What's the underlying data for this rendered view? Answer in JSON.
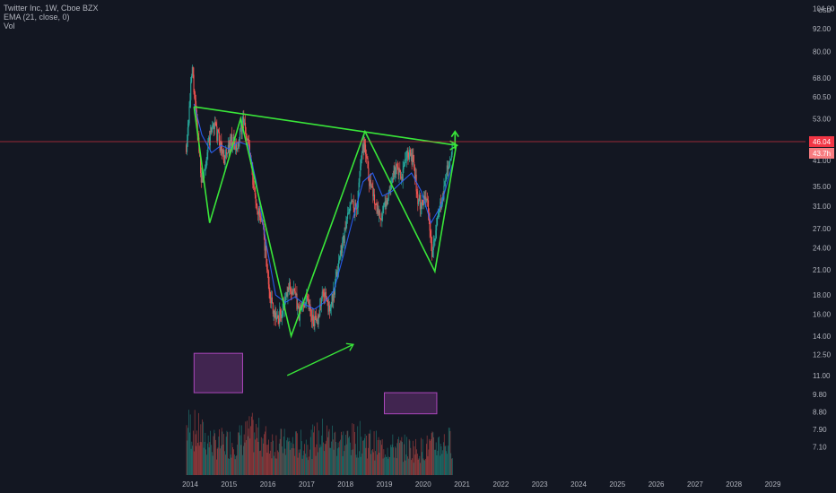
{
  "legend": {
    "symbol_line": "Twitter Inc, 1W, Cboe BZX",
    "ema_line": "EMA (21, close, 0)",
    "vol_line": "Vol"
  },
  "chart_data": {
    "type": "candlestick",
    "symbol": "Twitter Inc",
    "interval": "1W",
    "exchange": "Cboe BZX",
    "currency": "USD",
    "scale": "log",
    "x_tick_labels": [
      "2014",
      "2015",
      "2016",
      "2017",
      "2018",
      "2019",
      "2020",
      "2021",
      "2022",
      "2023",
      "2024",
      "2025",
      "2026",
      "2027",
      "2028",
      "2029"
    ],
    "y_tick_labels": [
      "104.00",
      "92.00",
      "80.00",
      "68.00",
      "60.50",
      "53.00",
      "41.00",
      "35.00",
      "31.00",
      "27.00",
      "24.00",
      "21.00",
      "18.00",
      "16.00",
      "14.00",
      "12.50",
      "11.00",
      "9.80",
      "8.80",
      "7.90",
      "7.10"
    ],
    "last_price_label": "46.04",
    "second_price_label": "43.7h",
    "price_path": [
      [
        2013.9,
        45
      ],
      [
        2014.0,
        60
      ],
      [
        2014.05,
        72
      ],
      [
        2014.15,
        54
      ],
      [
        2014.3,
        36
      ],
      [
        2014.45,
        44
      ],
      [
        2014.6,
        52
      ],
      [
        2014.75,
        46
      ],
      [
        2014.9,
        41
      ],
      [
        2015.05,
        47
      ],
      [
        2015.2,
        43
      ],
      [
        2015.35,
        52
      ],
      [
        2015.5,
        46
      ],
      [
        2015.62,
        35
      ],
      [
        2015.75,
        30
      ],
      [
        2015.9,
        26
      ],
      [
        2016.0,
        20
      ],
      [
        2016.1,
        17
      ],
      [
        2016.25,
        15.5
      ],
      [
        2016.4,
        16.5
      ],
      [
        2016.55,
        19
      ],
      [
        2016.7,
        18
      ],
      [
        2016.8,
        16
      ],
      [
        2016.9,
        17
      ],
      [
        2017.0,
        18
      ],
      [
        2017.12,
        16
      ],
      [
        2017.25,
        15
      ],
      [
        2017.35,
        17
      ],
      [
        2017.45,
        18.5
      ],
      [
        2017.55,
        16.5
      ],
      [
        2017.7,
        18
      ],
      [
        2017.82,
        22
      ],
      [
        2017.92,
        25
      ],
      [
        2018.0,
        27
      ],
      [
        2018.12,
        32
      ],
      [
        2018.28,
        30
      ],
      [
        2018.42,
        44
      ],
      [
        2018.5,
        46
      ],
      [
        2018.6,
        37
      ],
      [
        2018.72,
        33
      ],
      [
        2018.85,
        30
      ],
      [
        2018.95,
        29
      ],
      [
        2019.05,
        32
      ],
      [
        2019.15,
        35
      ],
      [
        2019.3,
        40
      ],
      [
        2019.42,
        36
      ],
      [
        2019.55,
        41
      ],
      [
        2019.65,
        43
      ],
      [
        2019.75,
        40
      ],
      [
        2019.85,
        33
      ],
      [
        2019.95,
        31
      ],
      [
        2020.05,
        34
      ],
      [
        2020.15,
        30
      ],
      [
        2020.22,
        23
      ],
      [
        2020.3,
        25
      ],
      [
        2020.4,
        30
      ],
      [
        2020.5,
        33
      ],
      [
        2020.6,
        38
      ],
      [
        2020.68,
        40
      ],
      [
        2020.75,
        44
      ]
    ],
    "ema_path": [
      [
        2014.1,
        58
      ],
      [
        2014.3,
        48
      ],
      [
        2014.55,
        43
      ],
      [
        2014.8,
        45
      ],
      [
        2015.0,
        44
      ],
      [
        2015.25,
        46
      ],
      [
        2015.5,
        45
      ],
      [
        2015.7,
        36
      ],
      [
        2015.95,
        25
      ],
      [
        2016.2,
        18
      ],
      [
        2016.45,
        17.2
      ],
      [
        2016.7,
        17.8
      ],
      [
        2016.95,
        17
      ],
      [
        2017.2,
        16.5
      ],
      [
        2017.45,
        17.2
      ],
      [
        2017.7,
        18.5
      ],
      [
        2017.95,
        23
      ],
      [
        2018.2,
        29
      ],
      [
        2018.45,
        36
      ],
      [
        2018.7,
        38
      ],
      [
        2018.95,
        33
      ],
      [
        2019.2,
        34
      ],
      [
        2019.45,
        36
      ],
      [
        2019.7,
        38
      ],
      [
        2019.95,
        34
      ],
      [
        2020.2,
        28
      ],
      [
        2020.45,
        31
      ],
      [
        2020.75,
        40
      ]
    ],
    "volume_shape": [
      [
        2014.0,
        0.85
      ],
      [
        2014.6,
        0.55
      ],
      [
        2015.2,
        0.6
      ],
      [
        2015.6,
        0.75
      ],
      [
        2016.0,
        0.6
      ],
      [
        2016.6,
        0.55
      ],
      [
        2017.0,
        0.55
      ],
      [
        2017.4,
        0.7
      ],
      [
        2017.9,
        0.6
      ],
      [
        2018.4,
        0.65
      ],
      [
        2018.9,
        0.5
      ],
      [
        2019.4,
        0.5
      ],
      [
        2019.9,
        0.45
      ],
      [
        2020.3,
        0.55
      ],
      [
        2020.75,
        0.6
      ]
    ],
    "annotations": {
      "m_pattern": [
        [
          2014.1,
          57
        ],
        [
          2014.5,
          28
        ],
        [
          2015.3,
          53
        ],
        [
          2016.6,
          14
        ],
        [
          2018.5,
          49
        ],
        [
          2020.3,
          20.8
        ],
        [
          2020.85,
          45
        ]
      ],
      "trendline": [
        [
          2014.1,
          57
        ],
        [
          2020.85,
          45
        ]
      ],
      "breakout_arrow": [
        [
          2020.82,
          44
        ],
        [
          2020.82,
          49
        ]
      ],
      "volume_trend_arrow": [
        [
          2016.5,
          11.0
        ],
        [
          2018.2,
          13.3
        ]
      ],
      "volume_boxes": [
        {
          "x0": 2014.1,
          "x1": 2015.35,
          "y0": 9.9,
          "y1": 12.6
        },
        {
          "x0": 2019.0,
          "x1": 2020.35,
          "y0": 8.7,
          "y1": 9.9
        }
      ]
    },
    "colors": {
      "background": "#131722",
      "candle_up": "#26a69a",
      "candle_down": "#ef5350",
      "ema": "#2962ff",
      "annotation": "#39e639",
      "volume_box": "#ab47bc",
      "price_line": "#f23645",
      "axis_text": "#b2b5be"
    },
    "grid": false,
    "legend_position": "top-left"
  }
}
